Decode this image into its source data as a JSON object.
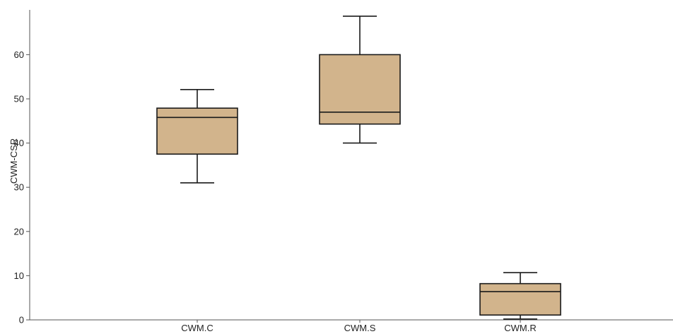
{
  "chart_data": {
    "type": "box",
    "title": "",
    "xlabel": "",
    "ylabel": "CWM-CSR",
    "ylim": [
      0,
      70
    ],
    "yticks": [
      0,
      10,
      20,
      30,
      40,
      50,
      60
    ],
    "grid": false,
    "categories": [
      "CWM.C",
      "CWM.S",
      "CWM.R"
    ],
    "boxes": [
      {
        "category": "CWM.C",
        "whisker_low": 31.0,
        "q1": 37.5,
        "median": 45.8,
        "q3": 47.9,
        "whisker_high": 52.1
      },
      {
        "category": "CWM.S",
        "whisker_low": 40.0,
        "q1": 44.3,
        "median": 47.0,
        "q3": 60.0,
        "whisker_high": 68.7
      },
      {
        "category": "CWM.R",
        "whisker_low": 0.2,
        "q1": 1.1,
        "median": 6.4,
        "q3": 8.2,
        "whisker_high": 10.7
      }
    ],
    "colors": {
      "box_fill": "#d2b48c",
      "stroke": "#1a1a1a",
      "axis": "#555555"
    }
  }
}
